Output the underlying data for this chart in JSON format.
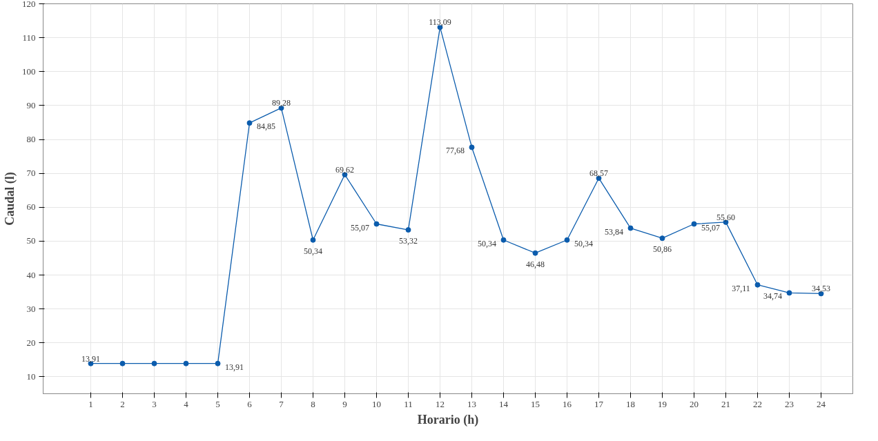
{
  "chart_data": {
    "type": "line",
    "xlabel": "Horario (h)",
    "ylabel": "Caudal (l)",
    "x": [
      1,
      2,
      3,
      4,
      5,
      6,
      7,
      8,
      9,
      10,
      11,
      12,
      13,
      14,
      15,
      16,
      17,
      18,
      19,
      20,
      21,
      22,
      23,
      24
    ],
    "series": [
      {
        "color": "#0b5cad",
        "values": [
          13.91,
          13.91,
          13.91,
          13.91,
          13.91,
          84.85,
          89.28,
          50.34,
          69.62,
          55.07,
          53.32,
          113.09,
          77.68,
          50.34,
          46.48,
          50.34,
          68.57,
          53.84,
          50.86,
          55.07,
          55.6,
          37.11,
          34.74,
          34.53
        ],
        "value_labels": [
          "13,91",
          null,
          null,
          null,
          "13,91",
          "84,85",
          "89,28",
          "50,34",
          "69,62",
          "55,07",
          "53,32",
          "113,09",
          "77,68",
          "50,34",
          "46,48",
          "50,34",
          "68,57",
          "53,84",
          "50,86",
          "55,07",
          "55,60",
          "37,11",
          "34,74",
          "34,53"
        ]
      }
    ],
    "xlim": [
      -0.5,
      25
    ],
    "xticks": [
      1,
      2,
      3,
      4,
      5,
      6,
      7,
      8,
      9,
      10,
      11,
      12,
      13,
      14,
      15,
      16,
      17,
      18,
      19,
      20,
      21,
      22,
      23,
      24
    ],
    "ylim": [
      5,
      120
    ],
    "yticks": [
      10,
      20,
      30,
      40,
      50,
      60,
      70,
      80,
      90,
      100,
      110,
      120
    ],
    "grid": true,
    "marker": "circle",
    "line_style": "solid"
  }
}
